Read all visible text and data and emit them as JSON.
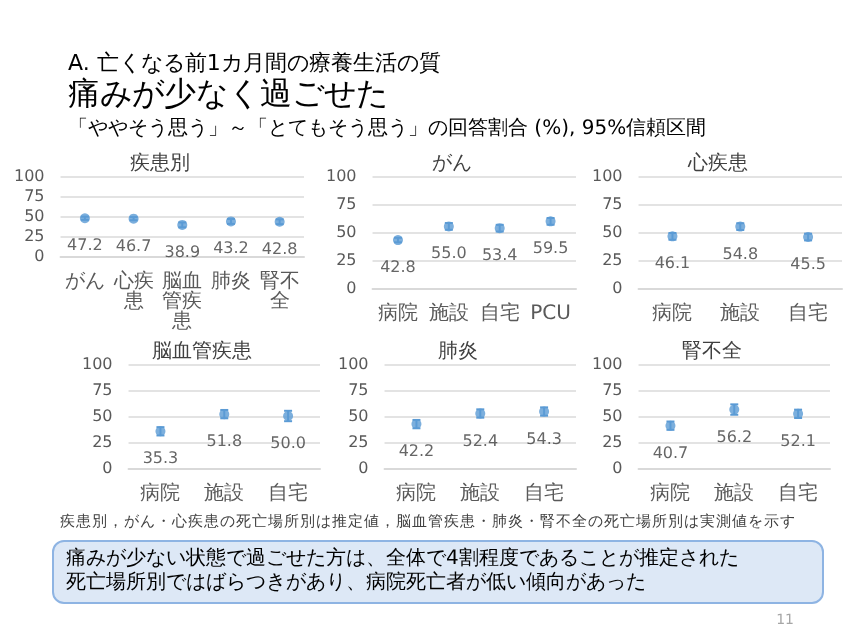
{
  "chart_data": [
    {
      "type": "other",
      "subtitle": "A. 亡くなる前1カ月間の療養生活の質",
      "title": "痛みが少なく過ごせた",
      "annotations": [
        "「ややそう思う」～「とてもそう思う」の回答割合 (%), 95%信頼区間"
      ]
    },
    {
      "type": "scatter",
      "title": "疾患別",
      "categories": [
        "がん",
        "心疾患",
        "脳血管疾患",
        "肺炎",
        "腎不全"
      ],
      "values": [
        47.2,
        46.7,
        38.9,
        43.2,
        42.8
      ],
      "value_labels": [
        "47.2",
        "46.7",
        "38.9",
        "43.2",
        "42.8"
      ],
      "errors": [
        2,
        2,
        3,
        3,
        3
      ],
      "color": "#5b9bd5",
      "marker": "circle",
      "ylim": [
        0,
        100
      ],
      "yticks": [
        0,
        25,
        50,
        75,
        100
      ],
      "grid": "y"
    },
    {
      "type": "scatter",
      "title": "がん",
      "categories": [
        "病院",
        "施設",
        "自宅",
        "PCU"
      ],
      "values": [
        42.8,
        55.0,
        53.4,
        59.5
      ],
      "value_labels": [
        "42.8",
        "55.0",
        "53.4",
        "59.5"
      ],
      "errors": [
        2,
        3,
        3,
        3
      ],
      "color": "#5b9bd5",
      "marker": "circle",
      "ylim": [
        0,
        100
      ],
      "yticks": [
        0,
        25,
        50,
        75,
        100
      ],
      "grid": "y"
    },
    {
      "type": "scatter",
      "title": "心疾患",
      "categories": [
        "病院",
        "施設",
        "自宅"
      ],
      "values": [
        46.1,
        54.8,
        45.5
      ],
      "value_labels": [
        "46.1",
        "54.8",
        "45.5"
      ],
      "errors": [
        3,
        3,
        3
      ],
      "color": "#5b9bd5",
      "marker": "circle",
      "ylim": [
        0,
        100
      ],
      "yticks": [
        0,
        25,
        50,
        75,
        100
      ],
      "grid": "y"
    },
    {
      "type": "scatter",
      "title": "脳血管疾患",
      "categories": [
        "病院",
        "施設",
        "自宅"
      ],
      "values": [
        35.3,
        51.8,
        50.0
      ],
      "value_labels": [
        "35.3",
        "51.8",
        "50.0"
      ],
      "errors": [
        4,
        4,
        5
      ],
      "color": "#5b9bd5",
      "marker": "circle",
      "ylim": [
        0,
        100
      ],
      "yticks": [
        0,
        25,
        50,
        75,
        100
      ],
      "grid": "y"
    },
    {
      "type": "scatter",
      "title": "肺炎",
      "categories": [
        "病院",
        "施設",
        "自宅"
      ],
      "values": [
        42.2,
        52.4,
        54.3
      ],
      "value_labels": [
        "42.2",
        "52.4",
        "54.3"
      ],
      "errors": [
        4,
        4,
        4
      ],
      "color": "#5b9bd5",
      "marker": "circle",
      "ylim": [
        0,
        100
      ],
      "yticks": [
        0,
        25,
        50,
        75,
        100
      ],
      "grid": "y"
    },
    {
      "type": "scatter",
      "title": "腎不全",
      "categories": [
        "病院",
        "施設",
        "自宅"
      ],
      "values": [
        40.7,
        56.2,
        52.1
      ],
      "value_labels": [
        "40.7",
        "56.2",
        "52.1"
      ],
      "errors": [
        4,
        5,
        4
      ],
      "color": "#5b9bd5",
      "marker": "circle",
      "ylim": [
        0,
        100
      ],
      "yticks": [
        0,
        25,
        50,
        75,
        100
      ],
      "grid": "y"
    },
    {
      "type": "other",
      "annotations": [
        "疾患別，がん・心疾患の死亡場所別は推定値，脳血管疾患・肺炎・腎不全の死亡場所別は実測値を示す",
        "痛みが少ない状態で過ごせた方は、全体で4割程度であることが推定された",
        "死亡場所別ではばらつきがあり、病院死亡者が低い傾向があった",
        "11"
      ]
    }
  ]
}
